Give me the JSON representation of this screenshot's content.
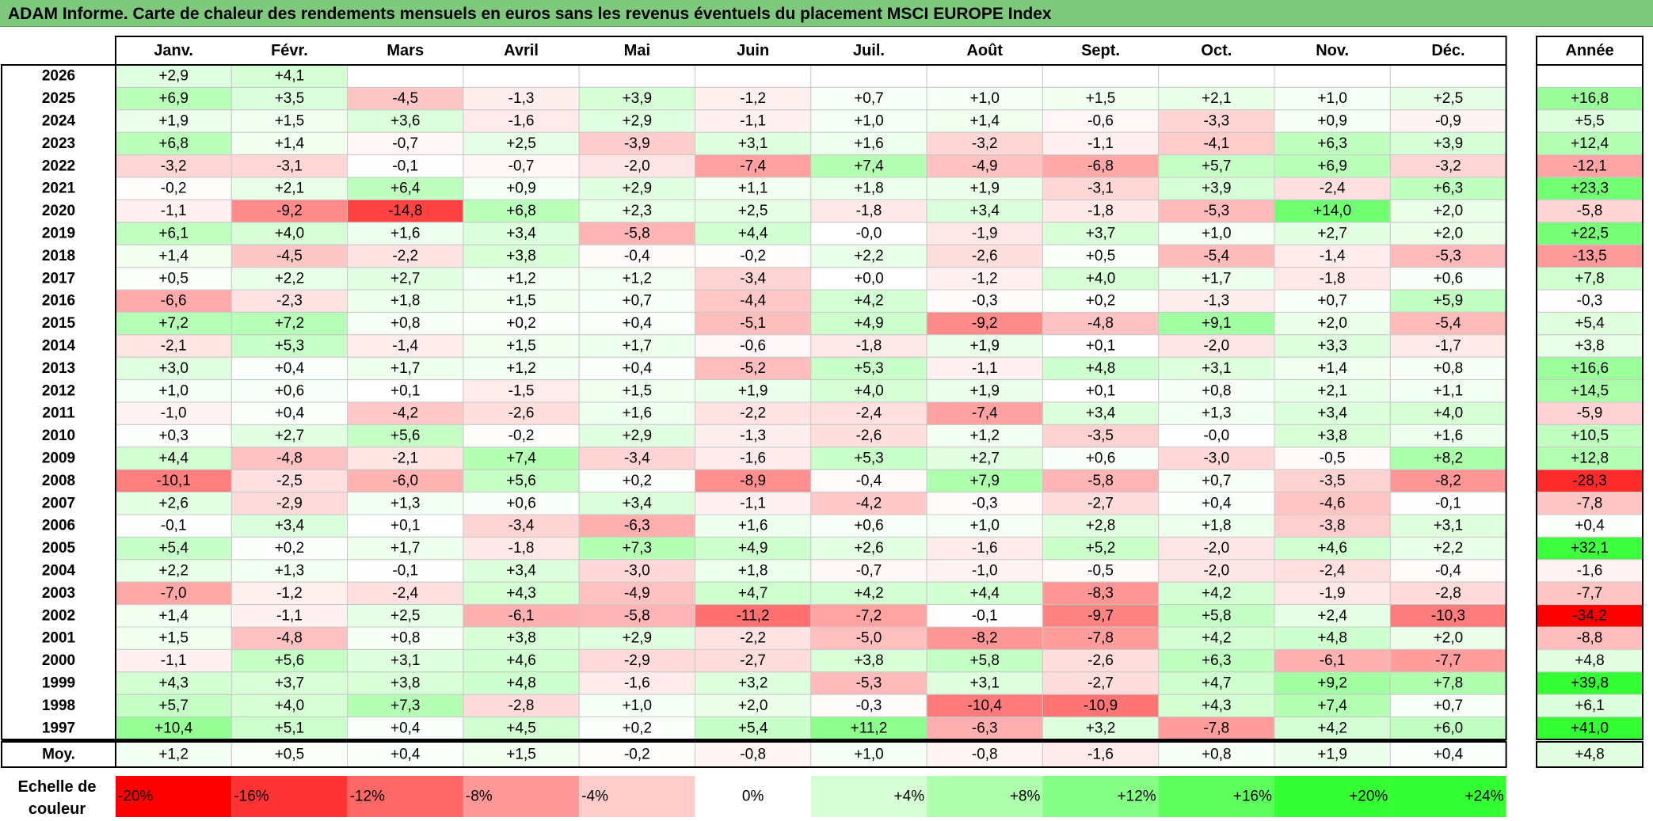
{
  "title": "ADAM Informe. Carte de chaleur des rendements mensuels en euros sans les revenus éventuels du placement MSCI EUROPE Index",
  "chart_data": {
    "type": "heatmap",
    "title": "ADAM Informe. Carte de chaleur des rendements mensuels en euros sans les revenus éventuels du placement MSCI EUROPE Index",
    "columns": [
      "Janv.",
      "Févr.",
      "Mars",
      "Avril",
      "Mai",
      "Juin",
      "Juil.",
      "Août",
      "Sept.",
      "Oct.",
      "Nov.",
      "Déc."
    ],
    "year_column": "Année",
    "rows": [
      {
        "year": "2026",
        "months": [
          "+2,9",
          "+4,1",
          "",
          "",
          "",
          "",
          "",
          "",
          "",
          "",
          "",
          ""
        ],
        "annual": ""
      },
      {
        "year": "2025",
        "months": [
          "+6,9",
          "+3,5",
          "-4,5",
          "-1,3",
          "+3,9",
          "-1,2",
          "+0,7",
          "+1,0",
          "+1,5",
          "+2,1",
          "+1,0",
          "+2,5"
        ],
        "annual": "+16,8"
      },
      {
        "year": "2024",
        "months": [
          "+1,9",
          "+1,5",
          "+3,6",
          "-1,6",
          "+2,9",
          "-1,1",
          "+1,0",
          "+1,4",
          "-0,6",
          "-3,3",
          "+0,9",
          "-0,9"
        ],
        "annual": "+5,5"
      },
      {
        "year": "2023",
        "months": [
          "+6,8",
          "+1,4",
          "-0,7",
          "+2,5",
          "-3,9",
          "+3,1",
          "+1,6",
          "-3,2",
          "-1,1",
          "-4,1",
          "+6,3",
          "+3,9"
        ],
        "annual": "+12,4"
      },
      {
        "year": "2022",
        "months": [
          "-3,2",
          "-3,1",
          "-0,1",
          "-0,7",
          "-2,0",
          "-7,4",
          "+7,4",
          "-4,9",
          "-6,8",
          "+5,7",
          "+6,9",
          "-3,2"
        ],
        "annual": "-12,1"
      },
      {
        "year": "2021",
        "months": [
          "-0,2",
          "+2,1",
          "+6,4",
          "+0,9",
          "+2,9",
          "+1,1",
          "+1,8",
          "+1,9",
          "-3,1",
          "+3,9",
          "-2,4",
          "+6,3"
        ],
        "annual": "+23,3"
      },
      {
        "year": "2020",
        "months": [
          "-1,1",
          "-9,2",
          "-14,8",
          "+6,8",
          "+2,3",
          "+2,5",
          "-1,8",
          "+3,4",
          "-1,8",
          "-5,3",
          "+14,0",
          "+2,0"
        ],
        "annual": "-5,8"
      },
      {
        "year": "2019",
        "months": [
          "+6,1",
          "+4,0",
          "+1,6",
          "+3,4",
          "-5,8",
          "+4,4",
          "-0,0",
          "-1,9",
          "+3,7",
          "+1,0",
          "+2,7",
          "+2,0"
        ],
        "annual": "+22,5"
      },
      {
        "year": "2018",
        "months": [
          "+1,4",
          "-4,5",
          "-2,2",
          "+3,8",
          "-0,4",
          "-0,2",
          "+2,2",
          "-2,6",
          "+0,5",
          "-5,4",
          "-1,4",
          "-5,3"
        ],
        "annual": "-13,5"
      },
      {
        "year": "2017",
        "months": [
          "+0,5",
          "+2,2",
          "+2,7",
          "+1,2",
          "+1,2",
          "-3,4",
          "+0,0",
          "-1,2",
          "+4,0",
          "+1,7",
          "-1,8",
          "+0,6"
        ],
        "annual": "+7,8"
      },
      {
        "year": "2016",
        "months": [
          "-6,6",
          "-2,3",
          "+1,8",
          "+1,5",
          "+0,7",
          "-4,4",
          "+4,2",
          "-0,3",
          "+0,2",
          "-1,3",
          "+0,7",
          "+5,9"
        ],
        "annual": "-0,3"
      },
      {
        "year": "2015",
        "months": [
          "+7,2",
          "+7,2",
          "+0,8",
          "+0,2",
          "+0,4",
          "-5,1",
          "+4,9",
          "-9,2",
          "-4,8",
          "+9,1",
          "+2,0",
          "-5,4"
        ],
        "annual": "+5,4"
      },
      {
        "year": "2014",
        "months": [
          "-2,1",
          "+5,3",
          "-1,4",
          "+1,5",
          "+1,7",
          "-0,6",
          "-1,8",
          "+1,9",
          "+0,1",
          "-2,0",
          "+3,3",
          "-1,7"
        ],
        "annual": "+3,8"
      },
      {
        "year": "2013",
        "months": [
          "+3,0",
          "+0,4",
          "+1,7",
          "+1,2",
          "+0,4",
          "-5,2",
          "+5,3",
          "-1,1",
          "+4,8",
          "+3,1",
          "+1,4",
          "+0,8"
        ],
        "annual": "+16,6"
      },
      {
        "year": "2012",
        "months": [
          "+1,0",
          "+0,6",
          "+0,1",
          "-1,5",
          "+1,5",
          "+1,9",
          "+4,0",
          "+1,9",
          "+0,1",
          "+0,8",
          "+2,1",
          "+1,1"
        ],
        "annual": "+14,5"
      },
      {
        "year": "2011",
        "months": [
          "-1,0",
          "+0,4",
          "-4,2",
          "-2,6",
          "+1,6",
          "-2,2",
          "-2,4",
          "-7,4",
          "+3,4",
          "+1,3",
          "+3,4",
          "+4,0"
        ],
        "annual": "-5,9"
      },
      {
        "year": "2010",
        "months": [
          "+0,3",
          "+2,7",
          "+5,6",
          "-0,2",
          "+2,9",
          "-1,3",
          "-2,6",
          "+1,2",
          "-3,5",
          "-0,0",
          "+3,8",
          "+1,6"
        ],
        "annual": "+10,5"
      },
      {
        "year": "2009",
        "months": [
          "+4,4",
          "-4,8",
          "-2,1",
          "+7,4",
          "-3,4",
          "-1,6",
          "+5,3",
          "+2,7",
          "+0,6",
          "-3,0",
          "-0,5",
          "+8,2"
        ],
        "annual": "+12,8"
      },
      {
        "year": "2008",
        "months": [
          "-10,1",
          "-2,5",
          "-6,0",
          "+5,6",
          "+0,2",
          "-8,9",
          "-0,4",
          "+7,9",
          "-5,8",
          "+0,7",
          "-3,5",
          "-8,2"
        ],
        "annual": "-28,3"
      },
      {
        "year": "2007",
        "months": [
          "+2,6",
          "-2,9",
          "+1,3",
          "+0,6",
          "+3,4",
          "-1,1",
          "-4,2",
          "-0,3",
          "-2,7",
          "+0,4",
          "-4,6",
          "-0,1"
        ],
        "annual": "-7,8"
      },
      {
        "year": "2006",
        "months": [
          "-0,1",
          "+3,4",
          "+0,1",
          "-3,4",
          "-6,3",
          "+1,6",
          "+0,6",
          "+1,0",
          "+2,8",
          "+1,8",
          "-3,8",
          "+3,1"
        ],
        "annual": "+0,4"
      },
      {
        "year": "2005",
        "months": [
          "+5,4",
          "+0,2",
          "+1,7",
          "-1,8",
          "+7,3",
          "+4,9",
          "+2,6",
          "-1,6",
          "+5,2",
          "-2,0",
          "+4,6",
          "+2,2"
        ],
        "annual": "+32,1"
      },
      {
        "year": "2004",
        "months": [
          "+2,2",
          "+1,3",
          "-0,1",
          "+3,4",
          "-3,0",
          "+1,8",
          "-0,7",
          "-1,0",
          "-0,5",
          "-2,0",
          "-2,4",
          "-0,4"
        ],
        "annual": "-1,6"
      },
      {
        "year": "2003",
        "months": [
          "-7,0",
          "-1,2",
          "-2,4",
          "+4,3",
          "-4,9",
          "+4,7",
          "+4,2",
          "+4,4",
          "-8,3",
          "+4,2",
          "-1,9",
          "-2,8"
        ],
        "annual": "-7,7"
      },
      {
        "year": "2002",
        "months": [
          "+1,4",
          "-1,1",
          "+2,5",
          "-6,1",
          "-5,8",
          "-11,2",
          "-7,2",
          "-0,1",
          "-9,7",
          "+5,8",
          "+2,4",
          "-10,3"
        ],
        "annual": "-34,2"
      },
      {
        "year": "2001",
        "months": [
          "+1,5",
          "-4,8",
          "+0,8",
          "+3,8",
          "+2,9",
          "-2,2",
          "-5,0",
          "-8,2",
          "-7,8",
          "+4,2",
          "+4,8",
          "+2,0"
        ],
        "annual": "-8,8"
      },
      {
        "year": "2000",
        "months": [
          "-1,1",
          "+5,6",
          "+3,1",
          "+4,6",
          "-2,9",
          "-2,7",
          "+3,8",
          "+5,8",
          "-2,6",
          "+6,3",
          "-6,1",
          "-7,7"
        ],
        "annual": "+4,8"
      },
      {
        "year": "1999",
        "months": [
          "+4,3",
          "+3,7",
          "+3,8",
          "+4,8",
          "-1,6",
          "+3,2",
          "-5,3",
          "+3,1",
          "-2,7",
          "+4,7",
          "+9,2",
          "+7,8"
        ],
        "annual": "+39,8"
      },
      {
        "year": "1998",
        "months": [
          "+5,7",
          "+4,0",
          "+7,3",
          "-2,8",
          "+1,0",
          "+2,0",
          "-0,3",
          "-10,4",
          "-10,9",
          "+4,3",
          "+7,4",
          "+0,7"
        ],
        "annual": "+6,1"
      },
      {
        "year": "1997",
        "months": [
          "+10,4",
          "+5,1",
          "+0,4",
          "+4,5",
          "+0,2",
          "+5,4",
          "+11,2",
          "-6,3",
          "+3,2",
          "-7,8",
          "+4,2",
          "+6,0"
        ],
        "annual": "+41,0"
      }
    ],
    "average": {
      "label": "Moy.",
      "months": [
        "+1,2",
        "+0,5",
        "+0,4",
        "+1,5",
        "-0,2",
        "-0,8",
        "+1,0",
        "-0,8",
        "-1,6",
        "+0,8",
        "+1,9",
        "+0,4"
      ],
      "annual": "+4,8"
    },
    "legend": {
      "label_lines": [
        "Echelle de",
        "couleur"
      ],
      "stops": [
        {
          "text": "-20%",
          "value": -20
        },
        {
          "text": "-16%",
          "value": -16
        },
        {
          "text": "-12%",
          "value": -12
        },
        {
          "text": "-8%",
          "value": -8
        },
        {
          "text": "-4%",
          "value": -4
        },
        {
          "text": "0%",
          "value": 0
        },
        {
          "text": "+4%",
          "value": 4
        },
        {
          "text": "+8%",
          "value": 8
        },
        {
          "text": "+12%",
          "value": 12
        },
        {
          "text": "+16%",
          "value": 16
        },
        {
          "text": "+20%",
          "value": 20
        },
        {
          "text": "+24%",
          "value": 24
        }
      ]
    },
    "colors": {
      "negative": "#ff0000",
      "neutral": "#ffffff",
      "positive": "#33ff33",
      "title_bar": "#7fc97f"
    }
  }
}
